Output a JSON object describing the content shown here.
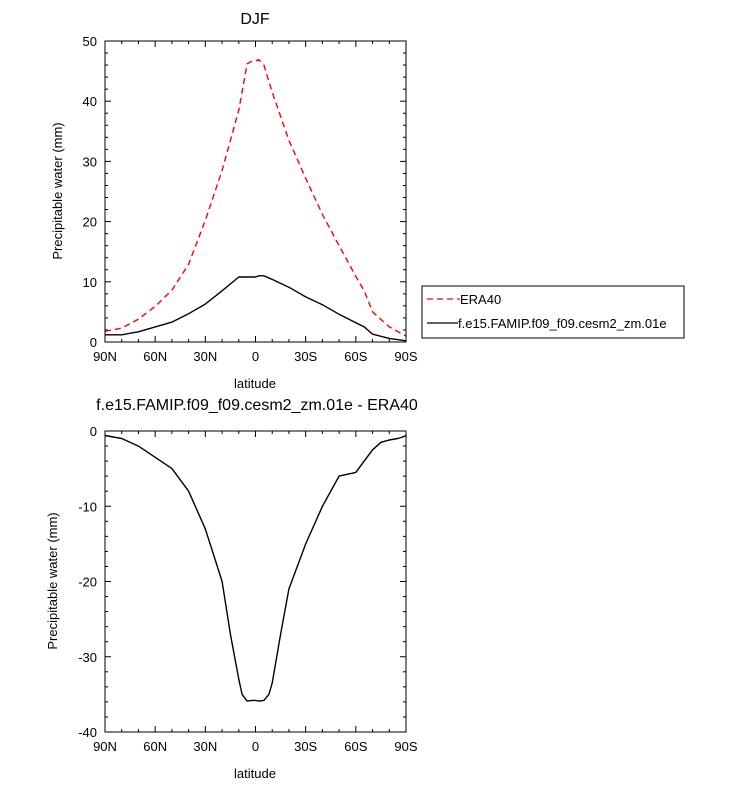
{
  "chart_data": [
    {
      "type": "line",
      "title": "DJF",
      "xlabel": "latitude",
      "ylabel": "Precipitable water (mm)",
      "xlim": [
        90,
        -90
      ],
      "ylim": [
        0,
        50
      ],
      "x_ticks": [
        90,
        60,
        30,
        0,
        -30,
        -60,
        -90
      ],
      "x_tick_labels": [
        "90N",
        "60N",
        "30N",
        "0",
        "30S",
        "60S",
        "90S"
      ],
      "y_ticks": [
        0,
        10,
        20,
        30,
        40,
        50
      ],
      "y_tick_labels": [
        "0",
        "10",
        "20",
        "30",
        "40",
        "50"
      ],
      "legend_position": "right",
      "series": [
        {
          "name": "ERA40",
          "color": "#ff0000",
          "dash": "dashed",
          "x": [
            90,
            80,
            70,
            60,
            50,
            40,
            30,
            20,
            10,
            5,
            2,
            0,
            -2,
            -5,
            -10,
            -20,
            -30,
            -40,
            -50,
            -60,
            -65,
            -70,
            -80,
            -90
          ],
          "y": [
            1.8,
            2.3,
            3.8,
            5.9,
            8.6,
            12.9,
            20.2,
            28.5,
            38.5,
            46.2,
            46.7,
            46.7,
            46.9,
            46.0,
            41.5,
            33.5,
            27.2,
            21.2,
            16.0,
            10.9,
            8.5,
            5.0,
            2.5,
            1.0
          ]
        },
        {
          "name": "f.e15.FAMIP.f09_f09.cesm2_zm.01e",
          "color": "#000000",
          "dash": "solid",
          "x": [
            90,
            80,
            70,
            60,
            50,
            40,
            30,
            20,
            10,
            5,
            0,
            -2,
            -5,
            -10,
            -20,
            -30,
            -40,
            -50,
            -60,
            -65,
            -70,
            -80,
            -90
          ],
          "y": [
            1.2,
            1.2,
            1.7,
            2.5,
            3.3,
            4.7,
            6.3,
            8.5,
            10.8,
            10.8,
            10.8,
            11.0,
            11.0,
            10.4,
            9.1,
            7.5,
            6.2,
            4.6,
            3.2,
            2.5,
            1.3,
            0.6,
            0.2
          ]
        }
      ]
    },
    {
      "type": "line",
      "title": "f.e15.FAMIP.f09_f09.cesm2_zm.01e - ERA40",
      "xlabel": "latitude",
      "ylabel": "Precipitable water (mm)",
      "xlim": [
        90,
        -90
      ],
      "ylim": [
        -40,
        0
      ],
      "x_ticks": [
        90,
        60,
        30,
        0,
        -30,
        -60,
        -90
      ],
      "x_tick_labels": [
        "90N",
        "60N",
        "30N",
        "0",
        "30S",
        "60S",
        "90S"
      ],
      "y_ticks": [
        0,
        -10,
        -20,
        -30,
        -40
      ],
      "y_tick_labels": [
        "0",
        "-10",
        "-20",
        "-30",
        "-40"
      ],
      "series": [
        {
          "color": "#000000",
          "dash": "solid",
          "x": [
            90,
            80,
            70,
            60,
            50,
            40,
            30,
            20,
            15,
            10,
            8,
            5,
            2,
            0,
            -2,
            -5,
            -8,
            -10,
            -15,
            -20,
            -30,
            -40,
            -50,
            -60,
            -65,
            -70,
            -75,
            -80,
            -85,
            -88,
            -90
          ],
          "y": [
            -0.6,
            -1.0,
            -2.0,
            -3.5,
            -5.0,
            -8.0,
            -13.0,
            -20.0,
            -27.0,
            -33.0,
            -35.0,
            -35.9,
            -35.8,
            -35.8,
            -35.9,
            -35.8,
            -35.0,
            -33.5,
            -27.0,
            -21.0,
            -15.0,
            -10.0,
            -6.0,
            -5.5,
            -4.0,
            -2.5,
            -1.5,
            -1.2,
            -1.0,
            -0.8,
            -0.6
          ]
        }
      ]
    }
  ]
}
